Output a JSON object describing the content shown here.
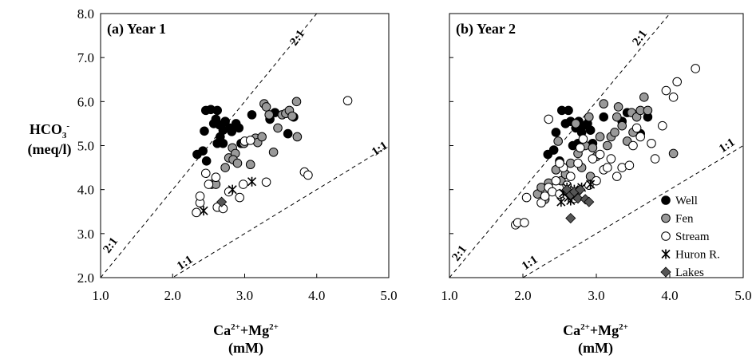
{
  "ylabel": {
    "main": "HCO",
    "sub": "3",
    "sup": "-",
    "unit": "(meq/l)"
  },
  "xlabel": {
    "main1": "Ca",
    "sup1": "2+",
    "plus": "+Mg",
    "sup2": "2+",
    "unit": "(mM)"
  },
  "line_labels": {
    "two_to_one": "2:1",
    "one_to_one": "1:1"
  },
  "legend": [
    {
      "key": "well",
      "label": "Well"
    },
    {
      "key": "fen",
      "label": "Fen"
    },
    {
      "key": "stream",
      "label": "Stream"
    },
    {
      "key": "huron",
      "label": "Huron R."
    },
    {
      "key": "lakes",
      "label": "Lakes"
    }
  ],
  "styles": {
    "well": {
      "fill": "#000000",
      "stroke": "#000000"
    },
    "fen": {
      "fill": "#999999",
      "stroke": "#000000"
    },
    "stream": {
      "fill": "#ffffff",
      "stroke": "#000000"
    },
    "huron": {
      "fill": "none",
      "stroke": "#000000"
    },
    "lakes": {
      "fill": "#555555",
      "stroke": "#000000"
    }
  },
  "chart_data": [
    {
      "type": "scatter",
      "title": "(a) Year 1",
      "xlim": [
        1.0,
        5.0
      ],
      "ylim": [
        2.0,
        8.0
      ],
      "xticks": [
        "1.0",
        "2.0",
        "3.0",
        "4.0",
        "5.0"
      ],
      "yticks": [
        "2.0",
        "3.0",
        "4.0",
        "5.0",
        "6.0",
        "7.0",
        "8.0"
      ],
      "reference_lines": [
        {
          "label": "2:1",
          "slope": 2
        },
        {
          "label": "1:1",
          "slope": 1
        }
      ],
      "series": [
        {
          "name": "Well",
          "key": "well",
          "points": [
            [
              2.34,
              4.8
            ],
            [
              2.42,
              4.88
            ],
            [
              2.44,
              5.33
            ],
            [
              2.47,
              4.65
            ],
            [
              2.46,
              5.8
            ],
            [
              2.53,
              5.82
            ],
            [
              2.62,
              5.8
            ],
            [
              2.57,
              5.5
            ],
            [
              2.6,
              5.6
            ],
            [
              2.65,
              5.47
            ],
            [
              2.7,
              5.35
            ],
            [
              2.73,
              5.55
            ],
            [
              2.66,
              5.2
            ],
            [
              2.62,
              5.05
            ],
            [
              2.7,
              5.05
            ],
            [
              2.79,
              5.4
            ],
            [
              2.82,
              5.32
            ],
            [
              2.88,
              5.5
            ],
            [
              2.92,
              5.4
            ],
            [
              2.95,
              5.05
            ],
            [
              3.1,
              5.7
            ],
            [
              3.35,
              5.6
            ],
            [
              3.42,
              5.75
            ],
            [
              3.6,
              5.27
            ],
            [
              3.68,
              5.65
            ]
          ]
        },
        {
          "name": "Fen",
          "key": "fen",
          "points": [
            [
              2.54,
              4.12
            ],
            [
              2.6,
              4.12
            ],
            [
              2.73,
              4.5
            ],
            [
              2.78,
              4.72
            ],
            [
              2.83,
              4.95
            ],
            [
              2.87,
              4.82
            ],
            [
              2.84,
              4.68
            ],
            [
              2.9,
              4.6
            ],
            [
              2.99,
              5.05
            ],
            [
              3.08,
              4.57
            ],
            [
              3.15,
              5.17
            ],
            [
              3.18,
              5.07
            ],
            [
              3.24,
              5.2
            ],
            [
              3.27,
              5.95
            ],
            [
              3.3,
              5.88
            ],
            [
              3.34,
              5.7
            ],
            [
              3.4,
              4.85
            ],
            [
              3.46,
              5.4
            ],
            [
              3.52,
              5.7
            ],
            [
              3.57,
              5.73
            ],
            [
              3.62,
              5.8
            ],
            [
              3.66,
              5.67
            ],
            [
              3.72,
              6.0
            ],
            [
              3.73,
              5.2
            ]
          ]
        },
        {
          "name": "Stream",
          "key": "stream",
          "points": [
            [
              2.33,
              3.48
            ],
            [
              2.38,
              3.7
            ],
            [
              2.38,
              3.85
            ],
            [
              2.46,
              4.37
            ],
            [
              2.5,
              4.12
            ],
            [
              2.6,
              4.28
            ],
            [
              2.62,
              3.6
            ],
            [
              2.7,
              3.57
            ],
            [
              2.78,
              3.95
            ],
            [
              2.93,
              3.82
            ],
            [
              2.98,
              4.12
            ],
            [
              3.0,
              5.1
            ],
            [
              3.08,
              5.12
            ],
            [
              3.3,
              4.17
            ],
            [
              3.83,
              4.4
            ],
            [
              3.88,
              4.33
            ],
            [
              4.43,
              6.02
            ]
          ]
        },
        {
          "name": "Huron R.",
          "key": "huron",
          "points": [
            [
              2.43,
              3.52
            ],
            [
              2.83,
              4.0
            ],
            [
              3.1,
              4.18
            ]
          ]
        },
        {
          "name": "Lakes",
          "key": "lakes",
          "points": [
            [
              2.68,
              3.72
            ]
          ]
        }
      ]
    },
    {
      "type": "scatter",
      "title": "(b) Year 2",
      "xlim": [
        1.0,
        5.0
      ],
      "ylim": [
        2.0,
        8.0
      ],
      "xticks": [
        "1.0",
        "2.0",
        "3.0",
        "4.0",
        "5.0"
      ],
      "yticks": [],
      "reference_lines": [
        {
          "label": "2:1",
          "slope": 2
        },
        {
          "label": "1:1",
          "slope": 1
        }
      ],
      "series": [
        {
          "name": "Well",
          "key": "well",
          "points": [
            [
              2.34,
              4.8
            ],
            [
              2.42,
              4.9
            ],
            [
              2.45,
              5.3
            ],
            [
              2.5,
              4.65
            ],
            [
              2.53,
              5.8
            ],
            [
              2.62,
              5.8
            ],
            [
              2.58,
              5.5
            ],
            [
              2.65,
              5.55
            ],
            [
              2.72,
              5.4
            ],
            [
              2.76,
              5.55
            ],
            [
              2.8,
              5.3
            ],
            [
              2.68,
              5.0
            ],
            [
              2.75,
              5.05
            ],
            [
              2.82,
              5.45
            ],
            [
              2.88,
              5.5
            ],
            [
              2.92,
              5.35
            ],
            [
              2.95,
              5.05
            ],
            [
              3.1,
              5.65
            ],
            [
              3.35,
              5.55
            ],
            [
              3.42,
              5.75
            ],
            [
              3.6,
              5.27
            ],
            [
              3.7,
              5.65
            ]
          ]
        },
        {
          "name": "Fen",
          "key": "fen",
          "points": [
            [
              2.2,
              3.9
            ],
            [
              2.25,
              4.05
            ],
            [
              2.3,
              3.78
            ],
            [
              2.35,
              4.15
            ],
            [
              2.45,
              4.45
            ],
            [
              2.52,
              4.2
            ],
            [
              2.58,
              4.35
            ],
            [
              2.6,
              3.95
            ],
            [
              2.65,
              4.6
            ],
            [
              2.72,
              5.5
            ],
            [
              2.75,
              4.82
            ],
            [
              2.8,
              4.5
            ],
            [
              2.85,
              5.0
            ],
            [
              2.9,
              5.65
            ],
            [
              2.92,
              4.3
            ],
            [
              2.95,
              4.95
            ],
            [
              3.0,
              4.75
            ],
            [
              3.05,
              5.2
            ],
            [
              3.1,
              5.95
            ],
            [
              3.15,
              5.0
            ],
            [
              3.2,
              5.2
            ],
            [
              3.25,
              5.3
            ],
            [
              3.28,
              5.65
            ],
            [
              3.3,
              5.88
            ],
            [
              3.35,
              5.45
            ],
            [
              3.42,
              5.1
            ],
            [
              3.48,
              5.75
            ],
            [
              3.5,
              5.3
            ],
            [
              3.55,
              5.65
            ],
            [
              3.6,
              5.8
            ],
            [
              3.65,
              6.1
            ],
            [
              3.7,
              5.8
            ],
            [
              4.05,
              4.82
            ],
            [
              2.48,
              5.1
            ]
          ]
        },
        {
          "name": "Stream",
          "key": "stream",
          "points": [
            [
              1.9,
              3.2
            ],
            [
              1.93,
              3.25
            ],
            [
              2.02,
              3.25
            ],
            [
              2.05,
              3.82
            ],
            [
              2.25,
              3.7
            ],
            [
              2.3,
              3.85
            ],
            [
              2.35,
              4.05
            ],
            [
              2.4,
              3.95
            ],
            [
              2.45,
              4.2
            ],
            [
              2.5,
              3.9
            ],
            [
              2.55,
              4.5
            ],
            [
              2.6,
              4.1
            ],
            [
              2.65,
              4.3
            ],
            [
              2.7,
              3.8
            ],
            [
              2.75,
              4.6
            ],
            [
              2.78,
              4.95
            ],
            [
              2.82,
              5.15
            ],
            [
              2.9,
              4.1
            ],
            [
              2.95,
              4.7
            ],
            [
              3.0,
              4.2
            ],
            [
              3.05,
              4.8
            ],
            [
              3.1,
              4.45
            ],
            [
              3.15,
              4.5
            ],
            [
              3.2,
              4.7
            ],
            [
              3.28,
              4.3
            ],
            [
              3.35,
              4.5
            ],
            [
              3.45,
              4.55
            ],
            [
              3.5,
              5.0
            ],
            [
              3.55,
              5.4
            ],
            [
              3.6,
              5.2
            ],
            [
              3.75,
              5.05
            ],
            [
              3.8,
              4.7
            ],
            [
              3.9,
              5.45
            ],
            [
              3.95,
              6.25
            ],
            [
              4.05,
              6.1
            ],
            [
              4.1,
              6.45
            ],
            [
              4.35,
              6.75
            ],
            [
              2.35,
              5.6
            ],
            [
              2.5,
              4.6
            ]
          ]
        },
        {
          "name": "Huron R.",
          "key": "huron",
          "points": [
            [
              2.52,
              3.72
            ],
            [
              2.55,
              3.92
            ],
            [
              2.6,
              4.05
            ],
            [
              2.62,
              3.82
            ],
            [
              2.65,
              3.75
            ],
            [
              2.7,
              4.0
            ],
            [
              2.75,
              3.85
            ],
            [
              2.8,
              4.05
            ],
            [
              2.92,
              4.12
            ]
          ]
        },
        {
          "name": "Lakes",
          "key": "lakes",
          "points": [
            [
              2.6,
              4.0
            ],
            [
              2.65,
              3.88
            ],
            [
              2.7,
              3.95
            ],
            [
              2.75,
              3.8
            ],
            [
              2.78,
              4.0
            ],
            [
              2.85,
              3.78
            ],
            [
              2.9,
              3.72
            ],
            [
              2.65,
              3.35
            ]
          ]
        }
      ]
    }
  ]
}
